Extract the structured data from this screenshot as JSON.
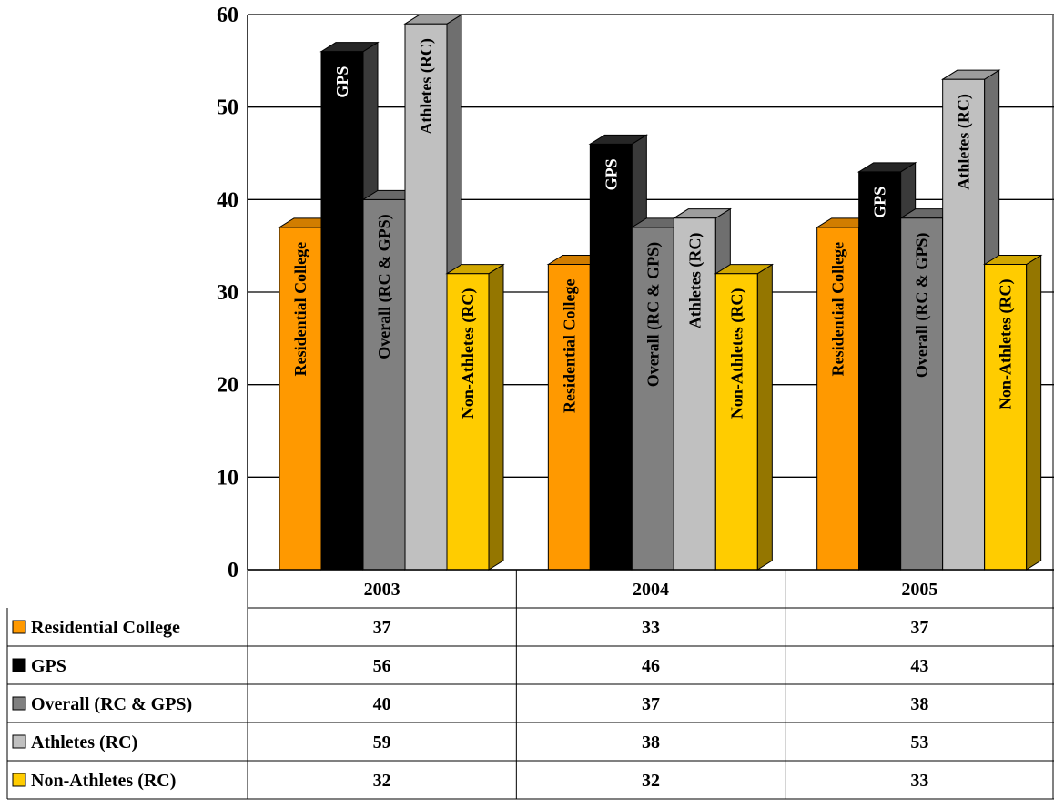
{
  "chart_data": {
    "type": "bar",
    "style": "3d-clustered-with-data-table",
    "categories": [
      "2003",
      "2004",
      "2005"
    ],
    "ylim": [
      0,
      60
    ],
    "y_ticks": [
      0,
      10,
      20,
      30,
      40,
      50,
      60
    ],
    "grid": "horizontal",
    "legend": "data-table-below",
    "series": [
      {
        "name": "Residential College",
        "values": [
          37,
          33,
          37
        ],
        "color": "#FF9900",
        "label_color": "#000000"
      },
      {
        "name": "GPS",
        "values": [
          56,
          46,
          43
        ],
        "color": "#000000",
        "label_color": "#FFFFFF"
      },
      {
        "name": "Overall (RC & GPS)",
        "values": [
          40,
          37,
          38
        ],
        "color": "#808080",
        "label_color": "#000000"
      },
      {
        "name": "Athletes (RC)",
        "values": [
          59,
          38,
          53
        ],
        "color": "#C0C0C0",
        "label_color": "#000000"
      },
      {
        "name": "Non-Athletes (RC)",
        "values": [
          32,
          32,
          33
        ],
        "color": "#FFCC00",
        "label_color": "#000000"
      }
    ]
  }
}
